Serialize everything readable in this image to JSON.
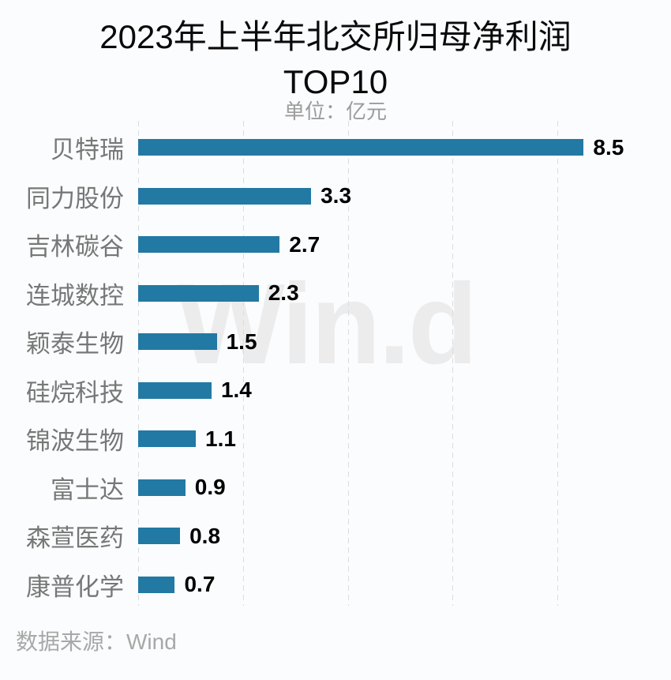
{
  "header": {
    "title_line1": "2023年上半年北交所归母净利润",
    "title_line2": "TOP10",
    "subtitle": "单位：亿元"
  },
  "watermark_text": "Win.d",
  "footer": {
    "source_label": "数据来源：Wind"
  },
  "colors": {
    "background": "#FBFCFD",
    "title": "#0A0A0A",
    "subtitle": "#9C9C9C",
    "bar": "#2279A3",
    "category_label": "#777777",
    "value_label": "#000000",
    "gridline": "#DADDE0",
    "watermark": "#ECECEC",
    "footer": "#A8A8A8"
  },
  "chart_data": {
    "type": "bar",
    "orientation": "horizontal",
    "title": "2023年上半年北交所归母净利润 TOP10",
    "unit_label": "单位：亿元",
    "categories": [
      "贝特瑞",
      "同力股份",
      "吉林碳谷",
      "连城数控",
      "颖泰生物",
      "硅烷科技",
      "锦波生物",
      "富士达",
      "森萱医药",
      "康普化学"
    ],
    "values": [
      8.5,
      3.3,
      2.7,
      2.3,
      1.5,
      1.4,
      1.1,
      0.9,
      0.8,
      0.7
    ],
    "xlim": [
      0,
      10
    ],
    "gridline_values": [
      0,
      2,
      4,
      6,
      8
    ],
    "grid_style": "dashed-vertical",
    "value_labels_position": "end-of-bar",
    "legend": "none",
    "source": "Wind"
  }
}
